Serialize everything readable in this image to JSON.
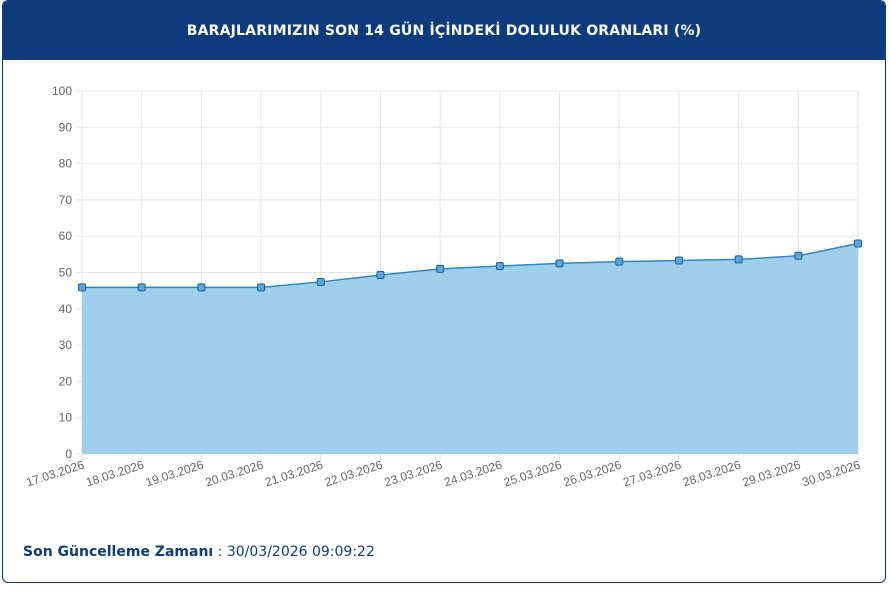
{
  "header": {
    "title": "BARAJLARIMIZIN SON 14 GÜN İÇİNDEKİ DOLULUK ORANLARI (%)"
  },
  "footer": {
    "label": "Son Güncelleme Zamanı",
    "separator": " : ",
    "value": "30/03/2026 09:09:22"
  },
  "colors": {
    "header_bg": "#0e3a7e",
    "area_fill": "#9dcfeb",
    "line": "#2f86c4",
    "marker_fill": "#5aa6dd",
    "marker_stroke": "#1d5b9a"
  },
  "chart_data": {
    "type": "area",
    "title": "BARAJLARIMIZIN SON 14 GÜN İÇİNDEKİ DOLULUK ORANLARI (%)",
    "categories": [
      "17.03.2026",
      "18.03.2026",
      "19.03.2026",
      "20.03.2026",
      "21.03.2026",
      "22.03.2026",
      "23.03.2026",
      "24.03.2026",
      "25.03.2026",
      "26.03.2026",
      "27.03.2026",
      "28.03.2026",
      "29.03.2026",
      "30.03.2026"
    ],
    "series": [
      {
        "values": [
          45.9,
          45.9,
          45.9,
          45.9,
          47.4,
          49.3,
          51.0,
          51.8,
          52.5,
          53.0,
          53.3,
          53.6,
          54.6,
          58.0
        ]
      }
    ],
    "yticks": [
      0,
      10,
      20,
      30,
      40,
      50,
      60,
      70,
      80,
      90,
      100
    ],
    "ylim": [
      0,
      100
    ],
    "grid": true,
    "legend": "none"
  }
}
